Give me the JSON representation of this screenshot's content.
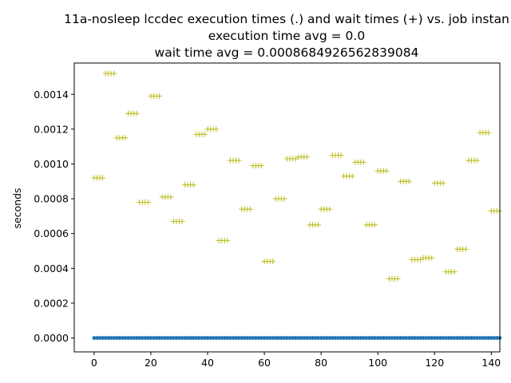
{
  "chart_data": {
    "type": "scatter",
    "title_lines": [
      "11a-nosleep lccdec execution times (.) and wait times (+) vs. job instan",
      "execution time avg = 0.0",
      "wait time avg = 0.0008684926562839084"
    ],
    "xlabel": "",
    "ylabel": "seconds",
    "xlim": [
      -7,
      143
    ],
    "ylim": [
      -8e-05,
      0.00158
    ],
    "xticks": [
      0,
      20,
      40,
      60,
      80,
      100,
      120,
      140
    ],
    "xtick_labels": [
      "0",
      "20",
      "40",
      "60",
      "80",
      "100",
      "120",
      "140"
    ],
    "yticks": [
      0,
      0.0002,
      0.0004,
      0.0006,
      0.0008,
      0.001,
      0.0012,
      0.0014
    ],
    "ytick_labels": [
      "0.0000",
      "0.0002",
      "0.0004",
      "0.0006",
      "0.0008",
      "0.0010",
      "0.0012",
      "0.0014"
    ],
    "grid": false,
    "series": [
      {
        "marker": ".",
        "color": "#1f77b4",
        "x_start": 0,
        "x_end": 143,
        "value": 0.0
      },
      {
        "marker": "+",
        "color": "#bcbd22",
        "group_size": 4,
        "group_x_starts": [
          0,
          4,
          8,
          12,
          16,
          20,
          24,
          28,
          32,
          36,
          40,
          44,
          48,
          52,
          56,
          60,
          64,
          68,
          72,
          76,
          80,
          84,
          88,
          92,
          96,
          100,
          104,
          108,
          112,
          116,
          120,
          124,
          128,
          132,
          136,
          140
        ],
        "group_values": [
          0.00092,
          0.00152,
          0.00115,
          0.00129,
          0.00078,
          0.00139,
          0.00081,
          0.00067,
          0.00088,
          0.00117,
          0.0012,
          0.00056,
          0.00102,
          0.00074,
          0.00099,
          0.00044,
          0.0008,
          0.00103,
          0.00104,
          0.00065,
          0.00074,
          0.00105,
          0.00093,
          0.00101,
          0.00065,
          0.00096,
          0.00034,
          0.0009,
          0.00045,
          0.00046,
          0.00089,
          0.00038,
          0.00051,
          0.00102,
          0.00118,
          0.00073
        ]
      }
    ]
  }
}
